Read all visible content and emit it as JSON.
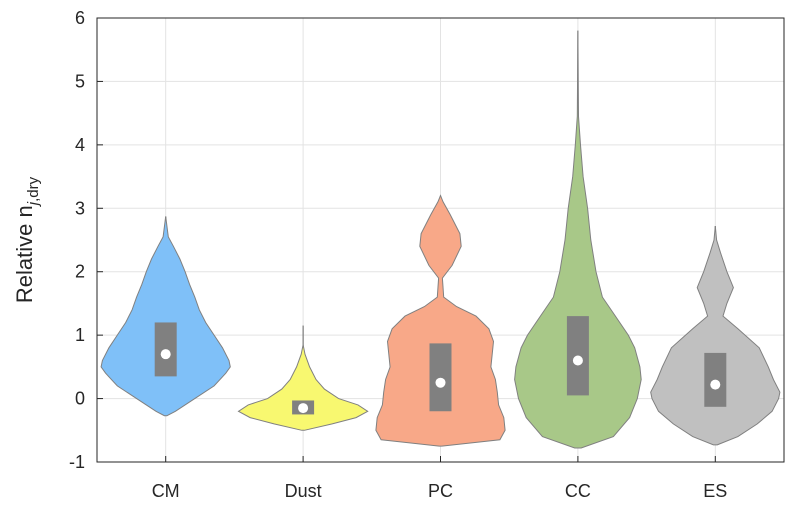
{
  "chart_data": {
    "type": "violin",
    "title": "",
    "xlabel": "",
    "ylabel": {
      "main": "Relative n",
      "subscript_italic": "j",
      "subscript_rest": ",dry"
    },
    "ylim": [
      -1,
      6
    ],
    "yticks": [
      "-1",
      "0",
      "1",
      "2",
      "3",
      "4",
      "5",
      "6"
    ],
    "categories": [
      "CM",
      "Dust",
      "PC",
      "CC",
      "ES"
    ],
    "grid": true,
    "legend": "none",
    "series": [
      {
        "category": "CM",
        "color": "#7fc0f8",
        "min": -0.27,
        "max": 2.87,
        "q1": 0.35,
        "median": 0.7,
        "q3": 1.2,
        "profile": [
          [
            -0.27,
            0.02
          ],
          [
            -0.2,
            0.15
          ],
          [
            0.0,
            0.45
          ],
          [
            0.2,
            0.75
          ],
          [
            0.4,
            0.93
          ],
          [
            0.5,
            1.0
          ],
          [
            0.6,
            0.98
          ],
          [
            0.8,
            0.88
          ],
          [
            1.0,
            0.75
          ],
          [
            1.2,
            0.62
          ],
          [
            1.4,
            0.52
          ],
          [
            1.6,
            0.45
          ],
          [
            1.8,
            0.37
          ],
          [
            2.0,
            0.3
          ],
          [
            2.2,
            0.22
          ],
          [
            2.4,
            0.12
          ],
          [
            2.55,
            0.04
          ],
          [
            2.87,
            0.0
          ]
        ]
      },
      {
        "category": "Dust",
        "color": "#f8f870",
        "min": -0.5,
        "max": 1.15,
        "q1": -0.25,
        "median": -0.15,
        "q3": -0.03,
        "profile": [
          [
            -0.5,
            0.02
          ],
          [
            -0.4,
            0.45
          ],
          [
            -0.3,
            0.82
          ],
          [
            -0.2,
            1.0
          ],
          [
            -0.1,
            0.85
          ],
          [
            0.0,
            0.55
          ],
          [
            0.15,
            0.33
          ],
          [
            0.3,
            0.2
          ],
          [
            0.5,
            0.1
          ],
          [
            0.7,
            0.03
          ],
          [
            0.85,
            0.0
          ],
          [
            1.15,
            0.0
          ]
        ]
      },
      {
        "category": "PC",
        "color": "#f8a888",
        "min": -0.75,
        "max": 3.2,
        "q1": -0.2,
        "median": 0.25,
        "q3": 0.87,
        "profile": [
          [
            -0.75,
            0.02
          ],
          [
            -0.65,
            0.92
          ],
          [
            -0.5,
            1.0
          ],
          [
            -0.3,
            0.98
          ],
          [
            -0.1,
            0.9
          ],
          [
            0.1,
            0.88
          ],
          [
            0.3,
            0.85
          ],
          [
            0.5,
            0.78
          ],
          [
            0.7,
            0.8
          ],
          [
            0.9,
            0.82
          ],
          [
            1.1,
            0.75
          ],
          [
            1.3,
            0.55
          ],
          [
            1.45,
            0.25
          ],
          [
            1.6,
            0.05
          ],
          [
            1.9,
            0.03
          ],
          [
            2.1,
            0.18
          ],
          [
            2.4,
            0.32
          ],
          [
            2.6,
            0.3
          ],
          [
            2.9,
            0.15
          ],
          [
            3.1,
            0.04
          ],
          [
            3.2,
            0.0
          ]
        ]
      },
      {
        "category": "CC",
        "color": "#a8c888",
        "min": -0.78,
        "max": 5.8,
        "q1": 0.05,
        "median": 0.6,
        "q3": 1.3,
        "profile": [
          [
            -0.78,
            0.05
          ],
          [
            -0.6,
            0.55
          ],
          [
            -0.3,
            0.8
          ],
          [
            0.0,
            0.92
          ],
          [
            0.3,
            0.98
          ],
          [
            0.5,
            0.96
          ],
          [
            0.8,
            0.88
          ],
          [
            1.0,
            0.78
          ],
          [
            1.3,
            0.58
          ],
          [
            1.6,
            0.38
          ],
          [
            2.0,
            0.28
          ],
          [
            2.5,
            0.2
          ],
          [
            3.0,
            0.15
          ],
          [
            3.5,
            0.08
          ],
          [
            4.0,
            0.04
          ],
          [
            4.45,
            0.01
          ],
          [
            5.8,
            0.0
          ]
        ]
      },
      {
        "category": "ES",
        "color": "#c0c0c0",
        "min": -0.73,
        "max": 2.72,
        "q1": -0.13,
        "median": 0.22,
        "q3": 0.72,
        "profile": [
          [
            -0.73,
            0.03
          ],
          [
            -0.6,
            0.35
          ],
          [
            -0.4,
            0.65
          ],
          [
            -0.2,
            0.88
          ],
          [
            0.0,
            0.98
          ],
          [
            0.1,
            1.0
          ],
          [
            0.3,
            0.9
          ],
          [
            0.5,
            0.82
          ],
          [
            0.8,
            0.68
          ],
          [
            1.1,
            0.35
          ],
          [
            1.3,
            0.12
          ],
          [
            1.5,
            0.18
          ],
          [
            1.75,
            0.28
          ],
          [
            2.0,
            0.18
          ],
          [
            2.3,
            0.08
          ],
          [
            2.5,
            0.02
          ],
          [
            2.72,
            0.0
          ]
        ]
      }
    ],
    "box_color": "#808080",
    "median_color": "#ffffff",
    "whisker_color": "#808080",
    "edge_color": "#808080"
  }
}
